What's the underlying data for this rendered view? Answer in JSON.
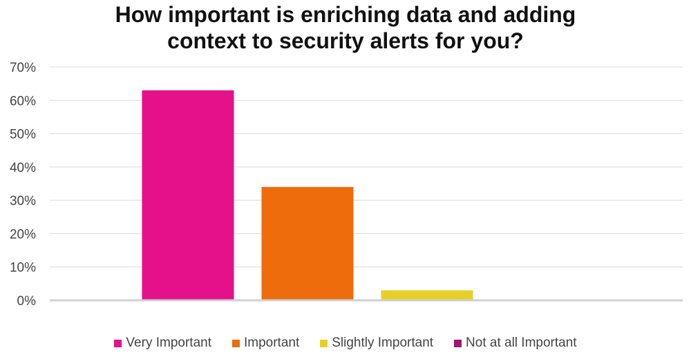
{
  "chart_data": {
    "type": "bar",
    "title": "How important is enriching data and adding context to security alerts for you?",
    "title_lines": [
      "How important is enriching data and adding",
      "context to security alerts for you?"
    ],
    "categories": [
      "Very Important",
      "Important",
      "Slightly Important",
      "Not at all Important"
    ],
    "values": [
      63,
      34,
      3,
      0
    ],
    "colors": [
      "#E5118A",
      "#EE6C0C",
      "#E8CF26",
      "#A0176E"
    ],
    "ylim": [
      0,
      70
    ],
    "yticks": [
      0,
      10,
      20,
      30,
      40,
      50,
      60,
      70
    ],
    "ytick_labels": [
      "0%",
      "10%",
      "20%",
      "30%",
      "40%",
      "50%",
      "60%",
      "70%"
    ],
    "grid": true,
    "legend_position": "bottom",
    "xlabel": "",
    "ylabel": ""
  }
}
